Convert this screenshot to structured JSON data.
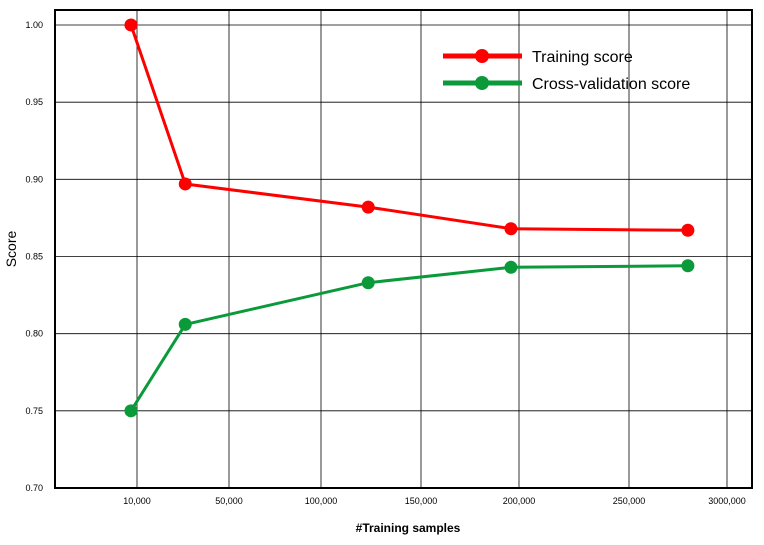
{
  "chart_data": {
    "type": "line",
    "title": "",
    "xlabel": "#Training samples",
    "ylabel": "Score",
    "ylim": [
      0.7,
      1.0
    ],
    "yticks": [
      "0.70",
      "0.75",
      "0.80",
      "0.85",
      "0.90",
      "0.95",
      "1.00"
    ],
    "xticks": [
      "10,000",
      "50,000",
      "100,000",
      "150,000",
      "200,000",
      "250,000",
      "3000,000"
    ],
    "grid": true,
    "legend_position": "top-right",
    "series": [
      {
        "name": "Training score",
        "color": "#ff0000",
        "points": [
          {
            "x": 7000,
            "y": 1.0
          },
          {
            "x": 34000,
            "y": 0.897
          },
          {
            "x": 125000,
            "y": 0.882
          },
          {
            "x": 196000,
            "y": 0.868
          },
          {
            "x": 284000,
            "y": 0.867
          }
        ]
      },
      {
        "name": "Cross-validation score",
        "color": "#0a9a3a",
        "points": [
          {
            "x": 7000,
            "y": 0.75
          },
          {
            "x": 34000,
            "y": 0.806
          },
          {
            "x": 125000,
            "y": 0.833
          },
          {
            "x": 196000,
            "y": 0.843
          },
          {
            "x": 284000,
            "y": 0.844
          }
        ]
      }
    ]
  }
}
